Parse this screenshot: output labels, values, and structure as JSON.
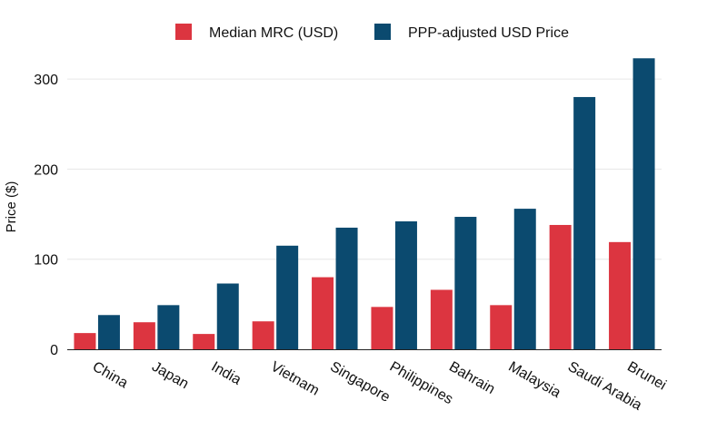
{
  "chart_data": {
    "type": "bar",
    "title": "",
    "xlabel": "",
    "ylabel": "Price ($)",
    "ylim": [
      0,
      330
    ],
    "yticks": [
      0,
      100,
      200,
      300
    ],
    "grid": "horizontal",
    "legend_placement": "top",
    "categories": [
      "China",
      "Japan",
      "India",
      "Vietnam",
      "Singapore",
      "Philippines",
      "Bahrain",
      "Malaysia",
      "Saudi Arabia",
      "Brunei"
    ],
    "series": [
      {
        "name": "Median MRC (USD)",
        "color": "#dc3540",
        "values": [
          18,
          30,
          17,
          31,
          80,
          47,
          66,
          49,
          138,
          119
        ]
      },
      {
        "name": "PPP-adjusted USD Price",
        "color": "#0b4a6f",
        "values": [
          38,
          49,
          73,
          115,
          135,
          142,
          147,
          156,
          280,
          323
        ]
      }
    ]
  }
}
